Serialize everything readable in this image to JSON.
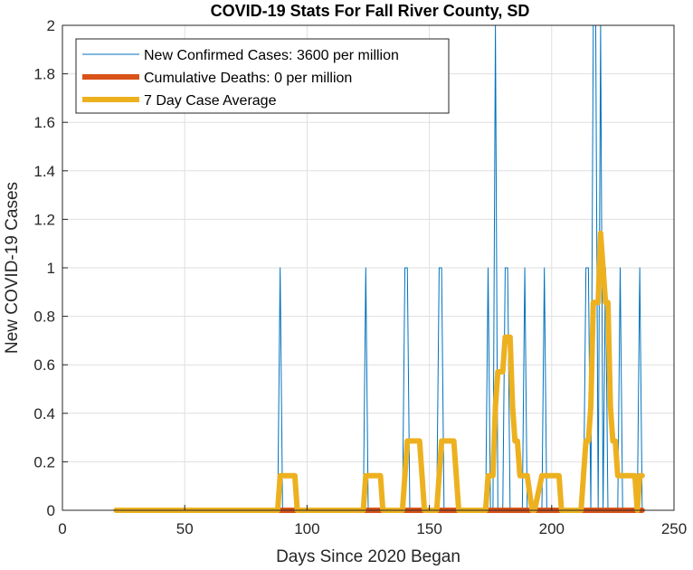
{
  "chart_data": {
    "type": "line",
    "title": "COVID-19 Stats For Fall River County, SD",
    "xlabel": "Days Since 2020 Began",
    "ylabel": "New COVID-19 Cases",
    "xlim": [
      0,
      250
    ],
    "ylim": [
      0,
      2
    ],
    "xticks": [
      "0",
      "50",
      "100",
      "150",
      "200",
      "250"
    ],
    "yticks": [
      "0",
      "0.2",
      "0.4",
      "0.6",
      "0.8",
      "1",
      "1.2",
      "1.4",
      "1.6",
      "1.8",
      "2"
    ],
    "grid": true,
    "legend_position": "top-left",
    "series": [
      {
        "name": "New Confirmed Cases: 3600 per million",
        "color": "#0072BD",
        "style": "thin",
        "points": [
          [
            22,
            0
          ],
          [
            88,
            0
          ],
          [
            89,
            1
          ],
          [
            90,
            0
          ],
          [
            123,
            0
          ],
          [
            124,
            1
          ],
          [
            125,
            0
          ],
          [
            139,
            0
          ],
          [
            140,
            1
          ],
          [
            141,
            1
          ],
          [
            142,
            0
          ],
          [
            153,
            0
          ],
          [
            154,
            1
          ],
          [
            155,
            1
          ],
          [
            156,
            0
          ],
          [
            173,
            0
          ],
          [
            174,
            1
          ],
          [
            175,
            0
          ],
          [
            176,
            0
          ],
          [
            177,
            2
          ],
          [
            178,
            0
          ],
          [
            180,
            0
          ],
          [
            181,
            1
          ],
          [
            182,
            1
          ],
          [
            183,
            0
          ],
          [
            188,
            0
          ],
          [
            189,
            1
          ],
          [
            190,
            0
          ],
          [
            196,
            0
          ],
          [
            197,
            1
          ],
          [
            198,
            0
          ],
          [
            213,
            0
          ],
          [
            214,
            1
          ],
          [
            215,
            1
          ],
          [
            216,
            0
          ],
          [
            217,
            2
          ],
          [
            218,
            2
          ],
          [
            219,
            0
          ],
          [
            220,
            2
          ],
          [
            221,
            0
          ],
          [
            222,
            1
          ],
          [
            223,
            0
          ],
          [
            227,
            0
          ],
          [
            228,
            1
          ],
          [
            229,
            0
          ],
          [
            235,
            0
          ],
          [
            236,
            1
          ],
          [
            237,
            0
          ]
        ]
      },
      {
        "name": "Cumulative Deaths: 0 per million",
        "color": "#D95319",
        "style": "thick",
        "points": [
          [
            22,
            0
          ],
          [
            237,
            0
          ]
        ]
      },
      {
        "name": "7 Day Case Average",
        "color": "#EDB120",
        "style": "thick",
        "points": [
          [
            22,
            0
          ],
          [
            88,
            0
          ],
          [
            89,
            0.1429
          ],
          [
            95,
            0.1429
          ],
          [
            96,
            0
          ],
          [
            123,
            0
          ],
          [
            124,
            0.1429
          ],
          [
            130,
            0.1429
          ],
          [
            131,
            0
          ],
          [
            139,
            0
          ],
          [
            140,
            0.1429
          ],
          [
            141,
            0.2857
          ],
          [
            146,
            0.2857
          ],
          [
            147,
            0.1429
          ],
          [
            148,
            0
          ],
          [
            153,
            0
          ],
          [
            154,
            0.1429
          ],
          [
            155,
            0.2857
          ],
          [
            160,
            0.2857
          ],
          [
            161,
            0.1429
          ],
          [
            162,
            0
          ],
          [
            173,
            0
          ],
          [
            174,
            0.1429
          ],
          [
            176,
            0.1429
          ],
          [
            177,
            0.4286
          ],
          [
            178,
            0.5714
          ],
          [
            180,
            0.5714
          ],
          [
            181,
            0.7143
          ],
          [
            183,
            0.7143
          ],
          [
            184,
            0.4286
          ],
          [
            185,
            0.2857
          ],
          [
            186,
            0.2857
          ],
          [
            187,
            0.1429
          ],
          [
            188,
            0.1429
          ],
          [
            189,
            0.1429
          ],
          [
            190,
            0.1429
          ],
          [
            192,
            0
          ],
          [
            193,
            0
          ],
          [
            196,
            0.1429
          ],
          [
            202,
            0.1429
          ],
          [
            203,
            0.1429
          ],
          [
            204,
            0
          ],
          [
            212,
            0
          ],
          [
            213,
            0.1429
          ],
          [
            214,
            0.2857
          ],
          [
            215,
            0.2857
          ],
          [
            216,
            0.4286
          ],
          [
            217,
            0.8571
          ],
          [
            218,
            0.8571
          ],
          [
            219,
            0.8571
          ],
          [
            220,
            1.1429
          ],
          [
            221,
            1
          ],
          [
            222,
            0.8571
          ],
          [
            223,
            0.8571
          ],
          [
            224,
            0.4286
          ],
          [
            225,
            0.2857
          ],
          [
            226,
            0.2857
          ],
          [
            227,
            0.1429
          ],
          [
            234,
            0.1429
          ],
          [
            235,
            0
          ],
          [
            236,
            0.1429
          ],
          [
            237,
            0.1429
          ]
        ]
      }
    ]
  }
}
